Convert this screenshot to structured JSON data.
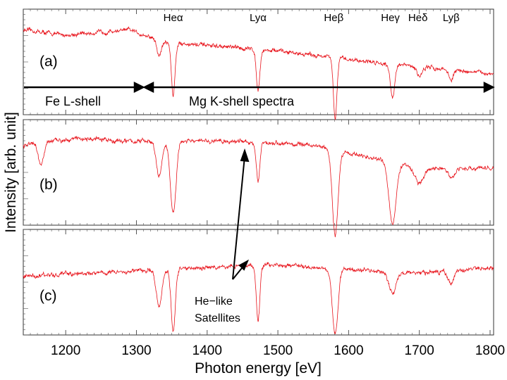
{
  "chart_data": {
    "type": "line",
    "title": "",
    "xlabel": "Photon energy [eV]",
    "ylabel": "Intensity [arb. unit]",
    "xlim": [
      1140,
      1805
    ],
    "x_ticks": [
      1200,
      1300,
      1400,
      1500,
      1600,
      1700,
      1800
    ],
    "x_tick_labels": [
      "1200",
      "1300",
      "1400",
      "1500",
      "1600",
      "1700",
      "1800"
    ],
    "series_color": "#e8141c",
    "line_labels": [
      {
        "text": "Heα",
        "energy": 1352
      },
      {
        "text": "Lyα",
        "energy": 1472
      },
      {
        "text": "Heβ",
        "energy": 1579
      },
      {
        "text": "Heγ",
        "energy": 1659
      },
      {
        "text": "Heδ",
        "energy": 1698
      },
      {
        "text": "Lyβ",
        "energy": 1745
      }
    ],
    "panels": [
      {
        "label": "(a)",
        "baseline": [
          [
            1140,
            0.86
          ],
          [
            1200,
            0.8
          ],
          [
            1290,
            0.86
          ],
          [
            1340,
            0.72
          ],
          [
            1500,
            0.62
          ],
          [
            1650,
            0.48
          ],
          [
            1805,
            0.36
          ]
        ],
        "dips": [
          [
            1332,
            0.18,
            3
          ],
          [
            1352,
            0.6,
            2.5
          ],
          [
            1472,
            0.45,
            2.5
          ],
          [
            1581,
            0.7,
            2.5
          ],
          [
            1662,
            0.38,
            3
          ],
          [
            1700,
            0.1,
            4
          ],
          [
            1745,
            0.12,
            3
          ]
        ],
        "noise": 0.04
      },
      {
        "label": "(b)",
        "baseline": [
          [
            1140,
            0.78
          ],
          [
            1210,
            0.85
          ],
          [
            1290,
            0.82
          ],
          [
            1450,
            0.82
          ],
          [
            1550,
            0.78
          ],
          [
            1700,
            0.55
          ],
          [
            1805,
            0.55
          ]
        ],
        "dips": [
          [
            1165,
            0.22,
            4
          ],
          [
            1332,
            0.35,
            4
          ],
          [
            1352,
            0.72,
            4
          ],
          [
            1472,
            0.4,
            2.5
          ],
          [
            1581,
            0.85,
            4
          ],
          [
            1662,
            0.6,
            5
          ],
          [
            1700,
            0.15,
            6
          ],
          [
            1745,
            0.1,
            4
          ]
        ],
        "noise": 0.035
      },
      {
        "label": "(c)",
        "baseline": [
          [
            1140,
            0.62
          ],
          [
            1300,
            0.68
          ],
          [
            1400,
            0.72
          ],
          [
            1500,
            0.75
          ],
          [
            1600,
            0.7
          ],
          [
            1700,
            0.65
          ],
          [
            1805,
            0.72
          ]
        ],
        "dips": [
          [
            1332,
            0.4,
            4
          ],
          [
            1352,
            0.7,
            3
          ],
          [
            1472,
            0.62,
            2.5
          ],
          [
            1581,
            0.75,
            4
          ],
          [
            1662,
            0.25,
            5
          ],
          [
            1745,
            0.15,
            4
          ]
        ],
        "noise": 0.04
      }
    ],
    "annotations": {
      "fe_label": "Fe L-shell",
      "mg_label": "Mg K-shell spectra",
      "boundary_energy": 1305,
      "satellite_label_line1": "He−like",
      "satellite_label_line2": "Satellites",
      "satellite_target_energies": [
        1449,
        1449
      ]
    }
  }
}
